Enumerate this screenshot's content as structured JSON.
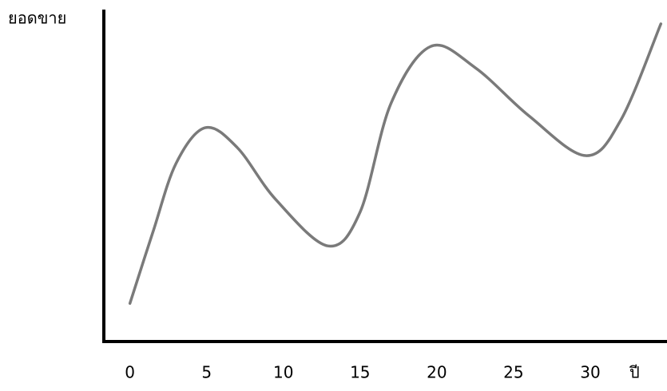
{
  "chart_data": {
    "type": "line",
    "y_label": "ยอดขาย",
    "x_label": "ปี",
    "x": [
      0,
      1.5,
      3,
      4.9,
      7,
      9.5,
      12.9,
      15,
      17,
      19.6,
      22.5,
      26,
      29.7,
      32,
      34.6
    ],
    "values": [
      11.5,
      33,
      53.6,
      64.4,
      58.4,
      42.8,
      28.8,
      39,
      71.6,
      88.9,
      82.5,
      68,
      56,
      66.8,
      95.7
    ],
    "color": "#7a7a7a",
    "xlim": [
      -1.7,
      35
    ],
    "ylim": [
      0,
      100
    ],
    "xticks": [
      0,
      5,
      10,
      15,
      20,
      25,
      30
    ]
  }
}
